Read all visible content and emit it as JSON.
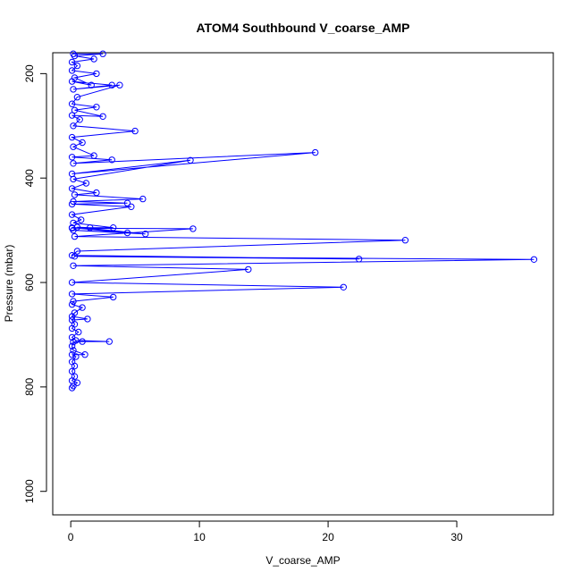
{
  "chart_data": {
    "type": "line",
    "title": "ATOM4 Southbound V_coarse_AMP",
    "xlabel": "V_coarse_AMP",
    "ylabel": "Pressure (mbar)",
    "xlim": [
      -1.4,
      37.5
    ],
    "ylim": [
      1045,
      160
    ],
    "y_reversed": true,
    "x_ticks": [
      0,
      10,
      20,
      30
    ],
    "y_ticks": [
      200,
      400,
      600,
      800,
      1000
    ],
    "grid": false,
    "legend": "none",
    "series_color": "#0000ff",
    "series": [
      {
        "points": [
          [
            0.1,
            802
          ],
          [
            0.2,
            798
          ],
          [
            0.5,
            792
          ],
          [
            0.1,
            788
          ],
          [
            0.3,
            780
          ],
          [
            0.1,
            770
          ],
          [
            0.3,
            760
          ],
          [
            0.1,
            752
          ],
          [
            0.4,
            742
          ],
          [
            0.1,
            738
          ],
          [
            1.1,
            738
          ],
          [
            0.2,
            730
          ],
          [
            0.1,
            722
          ],
          [
            0.2,
            714
          ],
          [
            0.9,
            713
          ],
          [
            3.0,
            713
          ],
          [
            0.4,
            711
          ],
          [
            0.1,
            705
          ],
          [
            0.6,
            695
          ],
          [
            0.1,
            688
          ],
          [
            0.3,
            680
          ],
          [
            0.1,
            672
          ],
          [
            1.3,
            670
          ],
          [
            0.1,
            665
          ],
          [
            0.3,
            658
          ],
          [
            0.9,
            648
          ],
          [
            0.1,
            642
          ],
          [
            0.2,
            636
          ],
          [
            3.3,
            628
          ],
          [
            0.1,
            622
          ],
          [
            21.2,
            609
          ],
          [
            0.1,
            600
          ],
          [
            13.8,
            575
          ],
          [
            0.2,
            568
          ],
          [
            36.0,
            556
          ],
          [
            0.3,
            550
          ],
          [
            22.4,
            555
          ],
          [
            0.1,
            548
          ],
          [
            0.5,
            540
          ],
          [
            26.0,
            519
          ],
          [
            0.3,
            512
          ],
          [
            9.5,
            497
          ],
          [
            0.1,
            496
          ],
          [
            1.5,
            495
          ],
          [
            0.5,
            494
          ],
          [
            5.8,
            507
          ],
          [
            0.2,
            500
          ],
          [
            4.4,
            505
          ],
          [
            0.1,
            495
          ],
          [
            3.3,
            495
          ],
          [
            0.2,
            486
          ],
          [
            0.8,
            480
          ],
          [
            0.1,
            470
          ],
          [
            4.7,
            455
          ],
          [
            0.1,
            450
          ],
          [
            4.4,
            448
          ],
          [
            0.2,
            445
          ],
          [
            5.6,
            440
          ],
          [
            0.3,
            432
          ],
          [
            2.0,
            428
          ],
          [
            0.1,
            420
          ],
          [
            1.2,
            410
          ],
          [
            0.2,
            402
          ],
          [
            9.3,
            366
          ],
          [
            0.1,
            392
          ],
          [
            19.0,
            351
          ],
          [
            0.2,
            372
          ],
          [
            3.2,
            365
          ],
          [
            0.1,
            360
          ],
          [
            1.8,
            357
          ],
          [
            0.2,
            340
          ],
          [
            0.9,
            332
          ],
          [
            0.1,
            322
          ],
          [
            5.0,
            310
          ],
          [
            0.2,
            300
          ],
          [
            0.7,
            288
          ],
          [
            0.1,
            280
          ],
          [
            2.5,
            282
          ],
          [
            0.3,
            270
          ],
          [
            2.0,
            264
          ],
          [
            0.1,
            258
          ],
          [
            0.5,
            245
          ],
          [
            3.8,
            222
          ],
          [
            0.2,
            230
          ],
          [
            3.2,
            222
          ],
          [
            0.1,
            215
          ],
          [
            1.6,
            222
          ],
          [
            0.3,
            208
          ],
          [
            2.0,
            200
          ],
          [
            0.1,
            194
          ],
          [
            0.5,
            185
          ],
          [
            0.1,
            178
          ],
          [
            1.8,
            172
          ],
          [
            0.3,
            166
          ],
          [
            2.5,
            162
          ],
          [
            0.2,
            162
          ]
        ]
      }
    ]
  }
}
